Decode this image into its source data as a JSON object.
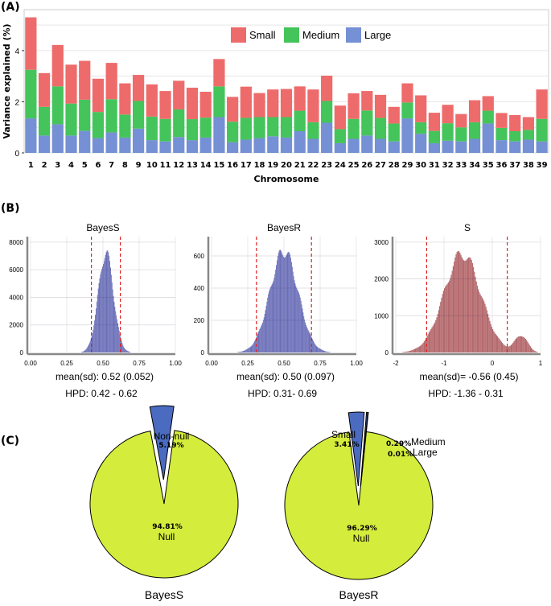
{
  "colors": {
    "small": "#ee6b6b",
    "medium": "#44c45a",
    "large": "#7590d4",
    "hist_blue": "#6a6fb8",
    "hist_red": "#b56a6e",
    "null_slice": "#d4ec3b",
    "nonnull_slice": "#4a6bc0",
    "hpd_line": "#e02020"
  },
  "panels": {
    "a": "(A)",
    "b": "(B)",
    "c": "(C)"
  },
  "chart_data": [
    {
      "id": "A",
      "type": "bar",
      "stacked": true,
      "xlabel": "Chromosome",
      "ylabel": "Variance explained (%)",
      "ylim": [
        0,
        5.6
      ],
      "yticks": [
        0,
        2,
        4
      ],
      "grid": true,
      "legend": "top-center",
      "categories": [
        "1",
        "2",
        "3",
        "4",
        "5",
        "6",
        "7",
        "8",
        "9",
        "10",
        "11",
        "12",
        "13",
        "14",
        "15",
        "16",
        "17",
        "18",
        "19",
        "20",
        "21",
        "22",
        "23",
        "24",
        "25",
        "26",
        "27",
        "28",
        "29",
        "30",
        "31",
        "32",
        "33",
        "34",
        "35",
        "36",
        "37",
        "38",
        "39"
      ],
      "series": [
        {
          "name": "Large",
          "color_key": "large",
          "values": [
            1.35,
            0.68,
            1.12,
            0.68,
            0.86,
            0.58,
            0.8,
            0.6,
            0.95,
            0.5,
            0.45,
            0.62,
            0.5,
            0.6,
            1.4,
            0.42,
            0.52,
            0.58,
            0.65,
            0.6,
            0.85,
            0.55,
            1.18,
            0.38,
            0.55,
            0.68,
            0.55,
            0.45,
            1.35,
            0.75,
            0.38,
            0.48,
            0.45,
            0.55,
            1.15,
            0.5,
            0.45,
            0.52,
            0.45
          ]
        },
        {
          "name": "Medium",
          "color_key": "medium",
          "values": [
            1.9,
            1.12,
            1.48,
            1.25,
            1.22,
            1.02,
            1.3,
            0.9,
            1.08,
            0.92,
            0.88,
            1.08,
            0.82,
            0.78,
            1.2,
            0.8,
            0.85,
            0.82,
            0.75,
            0.8,
            0.8,
            0.65,
            0.85,
            0.55,
            0.78,
            0.98,
            0.82,
            0.7,
            0.62,
            0.45,
            0.48,
            0.68,
            0.55,
            0.65,
            0.5,
            0.48,
            0.4,
            0.38,
            0.88
          ]
        },
        {
          "name": "Small",
          "color_key": "small",
          "values": [
            2.05,
            1.32,
            1.62,
            1.52,
            1.52,
            1.3,
            1.42,
            1.22,
            1.02,
            1.26,
            1.09,
            1.12,
            1.23,
            1.01,
            1.07,
            0.97,
            1.22,
            0.94,
            1.08,
            1.1,
            0.95,
            1.28,
            0.99,
            0.92,
            1.0,
            0.76,
            0.9,
            0.65,
            0.75,
            1.05,
            0.71,
            0.72,
            0.52,
            0.86,
            0.57,
            0.58,
            0.63,
            0.5,
            1.15
          ]
        }
      ]
    },
    {
      "id": "B1",
      "type": "bar",
      "title": "BayesS",
      "color_key": "hist_blue",
      "xlim": [
        0,
        1
      ],
      "xticks": [
        0,
        0.25,
        0.5,
        0.75,
        1
      ],
      "xtick_labels": [
        "0.00",
        "0.25",
        "0.50",
        "0.75",
        "1.00"
      ],
      "ylim": [
        0,
        8400
      ],
      "yticks": [
        0,
        2000,
        4000,
        6000,
        8000
      ],
      "distribution": {
        "mean": 0.52,
        "sd": 0.052,
        "peak": 7700
      },
      "hpd": [
        0.42,
        0.62
      ],
      "stats": {
        "mean_sd": "mean(sd): 0.52 (0.052)",
        "hpd": "HPD: 0.42 - 0.62"
      }
    },
    {
      "id": "B2",
      "type": "bar",
      "title": "BayesR",
      "color_key": "hist_blue",
      "xlim": [
        0,
        1
      ],
      "xticks": [
        0,
        0.25,
        0.5,
        0.75,
        1
      ],
      "xtick_labels": [
        "0.00",
        "0.25",
        "0.50",
        "0.75",
        "1.00"
      ],
      "ylim": [
        0,
        720
      ],
      "yticks": [
        0,
        200,
        400,
        600
      ],
      "distribution": {
        "mean": 0.5,
        "sd": 0.097,
        "peak": 670
      },
      "hpd": [
        0.31,
        0.69
      ],
      "stats": {
        "mean_sd": "mean(sd): 0.50 (0.097)",
        "hpd": "HPD: 0.31- 0.69"
      }
    },
    {
      "id": "B3",
      "type": "bar",
      "title": "S",
      "color_key": "hist_red",
      "xlim": [
        -2,
        1
      ],
      "xticks": [
        -2,
        -1,
        0,
        1
      ],
      "xtick_labels": [
        "-2",
        "-1",
        "0",
        "1"
      ],
      "ylim": [
        0,
        3150
      ],
      "yticks": [
        0,
        1000,
        2000,
        3000
      ],
      "distribution": {
        "mean": -0.56,
        "sd": 0.45,
        "peak": 2850,
        "second_mode": 0.6
      },
      "hpd": [
        -1.36,
        0.31
      ],
      "stats": {
        "mean_sd": "mean(sd)= -0.56 (0.45)",
        "hpd": "HPD: -1.36 - 0.31"
      }
    },
    {
      "id": "C1",
      "type": "pie",
      "title": "BayesS",
      "slices": [
        {
          "name": "Null",
          "value": 94.81,
          "label": "94.81%",
          "color_key": "null_slice"
        },
        {
          "name": "Non-null",
          "value": 5.19,
          "label": "5.19%",
          "color_key": "nonnull_slice"
        }
      ]
    },
    {
      "id": "C2",
      "type": "pie",
      "title": "BayesR",
      "slices": [
        {
          "name": "Null",
          "value": 96.29,
          "label": "96.29%",
          "color_key": "null_slice"
        },
        {
          "name": "Small",
          "value": 3.41,
          "label": "3.41%",
          "color_key": "nonnull_slice"
        },
        {
          "name": "Medium",
          "value": 0.29,
          "label": "0.29%",
          "color_key": "nonnull_slice"
        },
        {
          "name": "Large",
          "value": 0.01,
          "label": "0.01%",
          "color_key": "nonnull_slice"
        }
      ]
    }
  ]
}
